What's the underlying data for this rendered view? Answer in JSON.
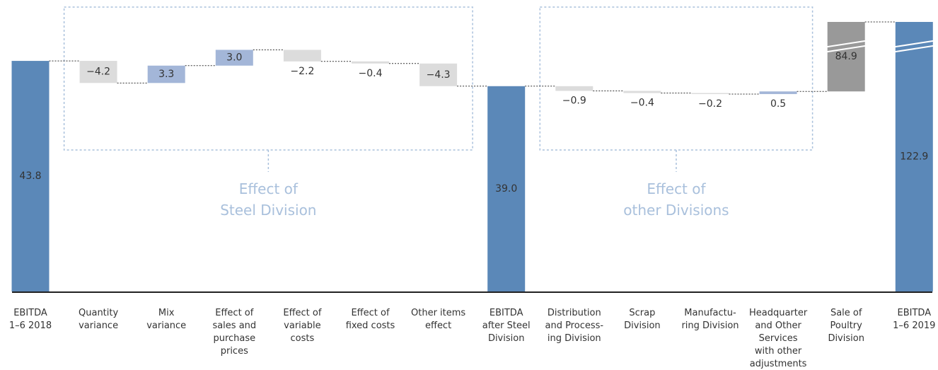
{
  "chart_data": {
    "type": "waterfall",
    "categories": [
      "EBITDA\n1–6 2018",
      "Quantity\nvariance",
      "Mix\nvariance",
      "Effect of\nsales and\npurchase\nprices",
      "Effect of\nvariable\ncosts",
      "Effect of\nfixed costs",
      "Other items\neffect",
      "EBITDA\nafter Steel\nDivision",
      "Distribution\nand Process-\ning Division",
      "Scrap\nDivision",
      "Manufactu-\nring Division",
      "Headquarter\nand Other\nServices\nwith other\nadjustments",
      "Sale of\nPoultry\nDivision",
      "EBITDA\n1–6 2019"
    ],
    "values": [
      43.8,
      -4.2,
      3.3,
      3.0,
      -2.2,
      -0.4,
      -4.3,
      39.0,
      -0.9,
      -0.4,
      -0.2,
      0.5,
      84.9,
      122.9
    ],
    "value_labels": [
      "43.8",
      "−4.2",
      "3.3",
      "3.0",
      "−2.2",
      "−0.4",
      "−4.3",
      "39.0",
      "−0.9",
      "−0.4",
      "−0.2",
      "0.5",
      "84.9",
      "122.9"
    ],
    "measures": [
      "total",
      "relative",
      "relative",
      "relative",
      "relative",
      "relative",
      "relative",
      "total",
      "relative",
      "relative",
      "relative",
      "relative",
      "relative",
      "total"
    ],
    "colors": [
      "#5b88b8",
      "#dcdcdc",
      "#a3b6d8",
      "#a3b6d8",
      "#dcdcdc",
      "#dcdcdc",
      "#dcdcdc",
      "#5b88b8",
      "#dcdcdc",
      "#dcdcdc",
      "#dcdcdc",
      "#a3b6d8",
      "#999999",
      "#5b88b8"
    ],
    "total_label_color": "#1f5a99",
    "ylim": [
      0,
      51.2
    ],
    "groups": [
      {
        "text": "Effect of\nSteel Division",
        "span": [
          1,
          6
        ]
      },
      {
        "text": "Effect of\nother Divisions",
        "span": [
          8,
          11
        ]
      }
    ]
  }
}
